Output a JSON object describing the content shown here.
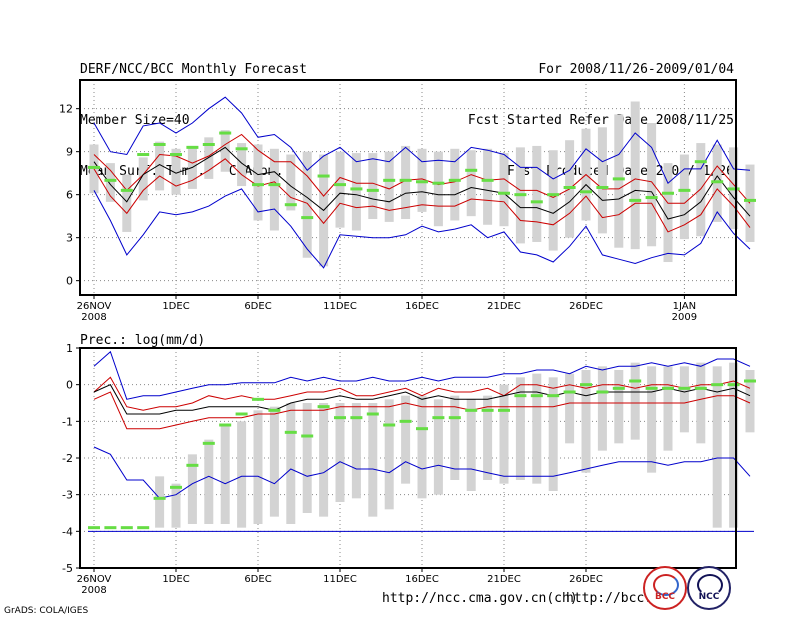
{
  "header": {
    "left": [
      "DERF/NCC/BCC Monthly Forecast",
      "Member Size=40",
      "Mean Surf. Temp.: °C Anom."
    ],
    "right": [
      "For 2008/11/26-2009/01/04",
      "Fcst Started Refer Date 2008/11/25",
      "Fcst Produced Date 2008/11/26"
    ]
  },
  "prec_label": "Prec.: log(mm/d)",
  "footer": {
    "url1": "http://ncc.cma.gov.cn(ch)",
    "url2": "http://bcc.",
    "grads": "GrADS: COLA/IGES",
    "logo_bcc": "BCC",
    "logo_ncc": "NCC"
  },
  "colors": {
    "max_min": "#0000cc",
    "spread": "#cc0000",
    "mean": "#000000",
    "box": "#d3d3d3",
    "obs": "#66dd44",
    "grid": "#888888"
  },
  "chart_data": [
    {
      "type": "box",
      "title": "Mean Surf. Temp.: °C Anom.",
      "ylim": [
        -1,
        14
      ],
      "yticks": [
        0,
        3,
        6,
        9,
        12
      ],
      "xticks": [
        {
          "day": 0,
          "label": "26NOV",
          "sub": "2008"
        },
        {
          "day": 5,
          "label": "1DEC"
        },
        {
          "day": 10,
          "label": "6DEC"
        },
        {
          "day": 15,
          "label": "11DEC"
        },
        {
          "day": 20,
          "label": "16DEC"
        },
        {
          "day": 25,
          "label": "21DEC"
        },
        {
          "day": 30,
          "label": "26DEC"
        },
        {
          "day": 36,
          "label": "1JAN",
          "sub": "2009"
        }
      ],
      "grid": true,
      "series": [
        {
          "name": "max",
          "values": [
            11,
            9,
            8.8,
            10.8,
            11,
            10.3,
            11,
            12,
            12.8,
            11.7,
            10,
            10.2,
            9.3,
            7.7,
            8.7,
            9.3,
            8.3,
            8.5,
            8.3,
            9.3,
            8.3,
            8.4,
            8.3,
            9.3,
            9.1,
            8.8,
            7.9,
            7.9,
            7.1,
            7.7,
            9.2,
            8.3,
            8.8,
            10.3,
            9.3,
            6.8,
            7.8,
            7.8,
            9.8,
            7.8,
            7.7
          ]
        },
        {
          "name": "upper",
          "values": [
            8.8,
            7.7,
            6.3,
            7.4,
            8.8,
            8.7,
            8.2,
            8.7,
            9.5,
            10.2,
            9.1,
            8.3,
            8.3,
            7.3,
            5.9,
            7.2,
            6.8,
            6.8,
            6.4,
            7,
            7.1,
            6.7,
            6.9,
            7.4,
            7,
            7.1,
            6.3,
            6.3,
            5.8,
            6.4,
            7.4,
            6.4,
            6.4,
            7.1,
            6.9,
            5.4,
            5.4,
            6.4,
            8,
            6.7,
            5.4
          ]
        },
        {
          "name": "mean",
          "values": [
            8.3,
            6.7,
            5.5,
            7.4,
            8.1,
            7.5,
            7.9,
            8.6,
            9.3,
            8.2,
            7.4,
            7.6,
            6.6,
            5.8,
            4.9,
            6.1,
            6,
            5.7,
            5.5,
            6.1,
            6.2,
            6,
            6,
            6.5,
            6.3,
            6.1,
            5.1,
            5.1,
            4.7,
            5.5,
            6.7,
            5.6,
            5.7,
            6.3,
            6.2,
            4.3,
            4.6,
            5.5,
            7.3,
            5.8,
            4.5
          ]
        },
        {
          "name": "lower",
          "values": [
            7.8,
            5.9,
            4.7,
            6.3,
            7.3,
            6.6,
            7,
            7.7,
            8.5,
            7.4,
            6.6,
            6.9,
            5.8,
            5.4,
            4,
            5.4,
            5.1,
            5.2,
            4.9,
            5.1,
            5.3,
            5.2,
            5.2,
            5.7,
            5.6,
            5.5,
            4.2,
            4.1,
            3.9,
            4.7,
            5.9,
            4.4,
            4.6,
            5.4,
            5.4,
            3.4,
            3.9,
            4.6,
            6.4,
            5.2,
            3.7
          ]
        },
        {
          "name": "min",
          "values": [
            6.3,
            4.2,
            1.8,
            3.2,
            4.8,
            4.6,
            4.8,
            5.2,
            5.9,
            6.4,
            4.8,
            5,
            3.8,
            2.2,
            0.9,
            3.2,
            3.1,
            3,
            3,
            3.2,
            3.8,
            3.4,
            3.6,
            3.9,
            3,
            3.4,
            2,
            1.8,
            1.3,
            2.4,
            3.8,
            1.8,
            1.5,
            1.2,
            1.6,
            1.9,
            1.8,
            2.6,
            4.8,
            3.3,
            2.2
          ]
        },
        {
          "name": "box_high",
          "values": [
            9.5,
            8.2,
            7.4,
            8.6,
            9.7,
            9.2,
            9.4,
            10,
            10.5,
            9.6,
            9.5,
            9.2,
            8.8,
            9,
            8.8,
            9,
            8.9,
            8.9,
            9,
            9.4,
            9.2,
            9,
            9.2,
            9.1,
            9.2,
            8.9,
            9.3,
            9.4,
            9.1,
            9.8,
            10.6,
            10.7,
            11.6,
            12.5,
            11,
            8.2,
            8.8,
            9.6,
            9.5,
            9.3,
            8.1
          ]
        },
        {
          "name": "box_low",
          "values": [
            6.1,
            5.5,
            3.4,
            5.6,
            6.3,
            6,
            6.4,
            7.1,
            7.6,
            6.6,
            4.2,
            3.5,
            4.9,
            1.6,
            1,
            3.7,
            3.5,
            4.3,
            4.1,
            4.3,
            4.8,
            3.8,
            4.2,
            4.5,
            3.9,
            3.8,
            2.6,
            2.7,
            2.1,
            3,
            4.2,
            3.3,
            2.3,
            2.2,
            2.4,
            1.3,
            2.9,
            3.1,
            4.1,
            3.6,
            2.7
          ]
        },
        {
          "name": "observed",
          "values": [
            7.9,
            7,
            6.3,
            8.8,
            9.5,
            8.8,
            9.3,
            9.5,
            10.3,
            9.2,
            6.7,
            6.7,
            5.3,
            4.4,
            7.3,
            6.7,
            6.4,
            6.3,
            7,
            7,
            6.9,
            6.8,
            7,
            7.7,
            7,
            6.1,
            6,
            5.5,
            6,
            6.5,
            6.2,
            6.5,
            7.1,
            5.6,
            5.8,
            6.1,
            6.3,
            8.3,
            6.9,
            6.4,
            5.6
          ]
        }
      ]
    },
    {
      "type": "box",
      "title": "Prec.: log(mm/d)",
      "ylim": [
        -5,
        1
      ],
      "yticks": [
        -5,
        -4,
        -3,
        -2,
        -1,
        0,
        1
      ],
      "xticks": [
        {
          "day": 0,
          "label": "26NOV",
          "sub": "2008"
        },
        {
          "day": 5,
          "label": "1DEC"
        },
        {
          "day": 10,
          "label": "6DEC"
        },
        {
          "day": 15,
          "label": "11DEC"
        },
        {
          "day": 20,
          "label": "16DEC"
        },
        {
          "day": 25,
          "label": "21DEC"
        },
        {
          "day": 30,
          "label": "26DEC"
        }
      ],
      "grid": true,
      "series": [
        {
          "name": "max",
          "values": [
            0.5,
            0.9,
            -0.4,
            -0.3,
            -0.3,
            -0.2,
            -0.1,
            0,
            0,
            0.05,
            0.05,
            0.05,
            0.2,
            0.1,
            0.2,
            0.1,
            0.1,
            0.2,
            0.1,
            0.1,
            0.2,
            0.1,
            0.2,
            0.2,
            0.2,
            0.3,
            0.3,
            0.4,
            0.4,
            0.3,
            0.5,
            0.4,
            0.5,
            0.5,
            0.6,
            0.5,
            0.6,
            0.5,
            0.7,
            0.7,
            0.5
          ]
        },
        {
          "name": "upper",
          "values": [
            -0.2,
            0.2,
            -0.6,
            -0.7,
            -0.6,
            -0.6,
            -0.5,
            -0.3,
            -0.4,
            -0.3,
            -0.4,
            -0.4,
            -0.3,
            -0.2,
            -0.2,
            -0.1,
            -0.3,
            -0.3,
            -0.2,
            -0.1,
            -0.3,
            -0.1,
            -0.2,
            -0.2,
            -0.1,
            -0.3,
            0,
            0,
            -0.1,
            0,
            -0.1,
            0,
            0,
            -0.1,
            0,
            0,
            -0.1,
            0,
            0,
            0.1,
            -0.1
          ]
        },
        {
          "name": "mean",
          "values": [
            -0.2,
            0,
            -0.8,
            -0.8,
            -0.8,
            -0.7,
            -0.7,
            -0.6,
            -0.6,
            -0.6,
            -0.6,
            -0.7,
            -0.5,
            -0.4,
            -0.4,
            -0.3,
            -0.4,
            -0.4,
            -0.3,
            -0.2,
            -0.4,
            -0.3,
            -0.4,
            -0.4,
            -0.4,
            -0.3,
            -0.2,
            -0.2,
            -0.3,
            -0.2,
            -0.3,
            -0.2,
            -0.2,
            -0.2,
            -0.2,
            -0.1,
            -0.2,
            -0.1,
            -0.2,
            -0.1,
            -0.3
          ]
        },
        {
          "name": "lower",
          "values": [
            -0.4,
            -0.2,
            -1.2,
            -1.2,
            -1.2,
            -1.1,
            -1,
            -0.9,
            -0.9,
            -0.9,
            -0.8,
            -0.8,
            -0.7,
            -0.7,
            -0.7,
            -0.6,
            -0.6,
            -0.6,
            -0.6,
            -0.5,
            -0.6,
            -0.6,
            -0.6,
            -0.7,
            -0.6,
            -0.6,
            -0.6,
            -0.6,
            -0.6,
            -0.5,
            -0.5,
            -0.5,
            -0.5,
            -0.5,
            -0.5,
            -0.5,
            -0.5,
            -0.4,
            -0.3,
            -0.3,
            -0.5
          ]
        },
        {
          "name": "min",
          "values": [
            -1.7,
            -1.9,
            -2.6,
            -2.6,
            -3.1,
            -3,
            -2.7,
            -2.5,
            -2.7,
            -2.5,
            -2.5,
            -2.7,
            -2.3,
            -2.5,
            -2.4,
            -2.1,
            -2.3,
            -2.3,
            -2.4,
            -2.1,
            -2.3,
            -2.2,
            -2.3,
            -2.3,
            -2.4,
            -2.5,
            -2.5,
            -2.5,
            -2.5,
            -2.4,
            -2.3,
            -2.2,
            -2.1,
            -2.1,
            -2.1,
            -2.2,
            -2.1,
            -2.1,
            -2,
            -2,
            -2.5
          ]
        },
        {
          "name": "box_high",
          "values": [
            null,
            null,
            null,
            null,
            -2.5,
            -2.7,
            -1.9,
            -1.5,
            -1.1,
            -1,
            -0.7,
            -0.6,
            -0.5,
            -0.5,
            -0.5,
            -0.5,
            -0.5,
            -0.5,
            -0.4,
            -0.3,
            -0.3,
            -0.4,
            -0.3,
            -0.4,
            -0.3,
            0,
            0.2,
            0.3,
            0.2,
            0.3,
            0.4,
            0.5,
            0.4,
            0.6,
            0.5,
            0.5,
            0.5,
            0.6,
            0.5,
            0.6,
            0.4
          ]
        },
        {
          "name": "box_low",
          "values": [
            null,
            null,
            null,
            null,
            -3.9,
            -3.9,
            -3.8,
            -3.8,
            -3.8,
            -3.9,
            -3.8,
            -3.6,
            -3.8,
            -3.5,
            -3.6,
            -3.2,
            -3.1,
            -3.6,
            -3.4,
            -2.7,
            -3.1,
            -3,
            -2.6,
            -2.9,
            -2.6,
            -2.7,
            -2.6,
            -2.7,
            -2.9,
            -1.6,
            -2.4,
            -1.8,
            -1.6,
            -1.5,
            -2.4,
            -1.8,
            -1.3,
            -1.6,
            -3.9,
            -3.9,
            -1.3
          ]
        },
        {
          "name": "observed",
          "values": [
            -3.9,
            -3.9,
            -3.9,
            -3.9,
            -3.1,
            -2.8,
            -2.2,
            -1.6,
            -1.1,
            -0.8,
            -0.4,
            -0.7,
            -1.3,
            -1.4,
            -0.6,
            -0.9,
            -0.9,
            -0.8,
            -1.1,
            -1,
            -1.2,
            -0.9,
            -0.9,
            -0.7,
            -0.7,
            -0.7,
            -0.3,
            -0.3,
            -0.3,
            -0.2,
            0,
            -0.2,
            -0.1,
            0.1,
            -0.1,
            -0.1,
            -0.1,
            -0.1,
            0,
            0,
            0.1
          ]
        }
      ]
    }
  ]
}
